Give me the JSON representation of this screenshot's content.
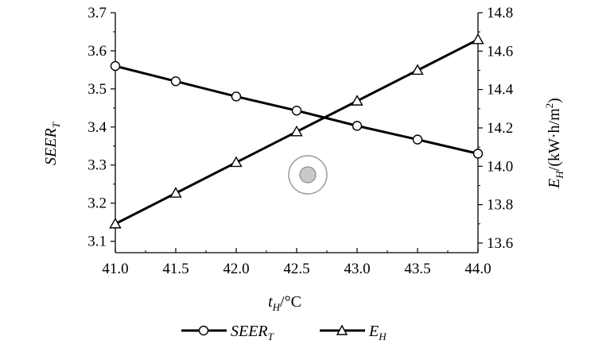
{
  "chart_data": {
    "type": "line",
    "x": [
      41.0,
      41.5,
      42.0,
      42.5,
      43.0,
      43.5,
      44.0
    ],
    "series": [
      {
        "name": "SEER_T",
        "axis": "left",
        "marker": "circle",
        "values": [
          3.56,
          3.52,
          3.48,
          3.443,
          3.403,
          3.367,
          3.33
        ]
      },
      {
        "name": "E_H",
        "axis": "right",
        "marker": "triangle",
        "values": [
          13.7,
          13.86,
          14.02,
          14.18,
          14.34,
          14.5,
          14.66
        ]
      }
    ],
    "xlim": [
      41.0,
      44.0
    ],
    "ylim_left": [
      3.07,
      3.7
    ],
    "ylim_right": [
      13.55,
      14.8
    ],
    "x_ticks": [
      "41.0",
      "41.5",
      "42.0",
      "42.5",
      "43.0",
      "43.5",
      "44.0"
    ],
    "y_ticks_left": [
      "3.1",
      "3.2",
      "3.3",
      "3.4",
      "3.5",
      "3.6",
      "3.7"
    ],
    "y_ticks_right": [
      "13.6",
      "13.8",
      "14.0",
      "14.2",
      "14.4",
      "14.6",
      "14.8"
    ],
    "xlabel": {
      "main": "t",
      "sub": "H",
      "unit": "/°C"
    },
    "ylabel_left": {
      "main": "SEER",
      "sub": "T"
    },
    "ylabel_right": {
      "main": "E",
      "sub": "H",
      "unit": "/(kW·h/m",
      "sup": "2",
      "close": ")"
    },
    "legend": {
      "placement": "bottom-center",
      "items": [
        {
          "main": "SEER",
          "sub": "T",
          "marker": "circle"
        },
        {
          "main": "E",
          "sub": "H",
          "marker": "triangle"
        }
      ]
    },
    "grid": false
  }
}
